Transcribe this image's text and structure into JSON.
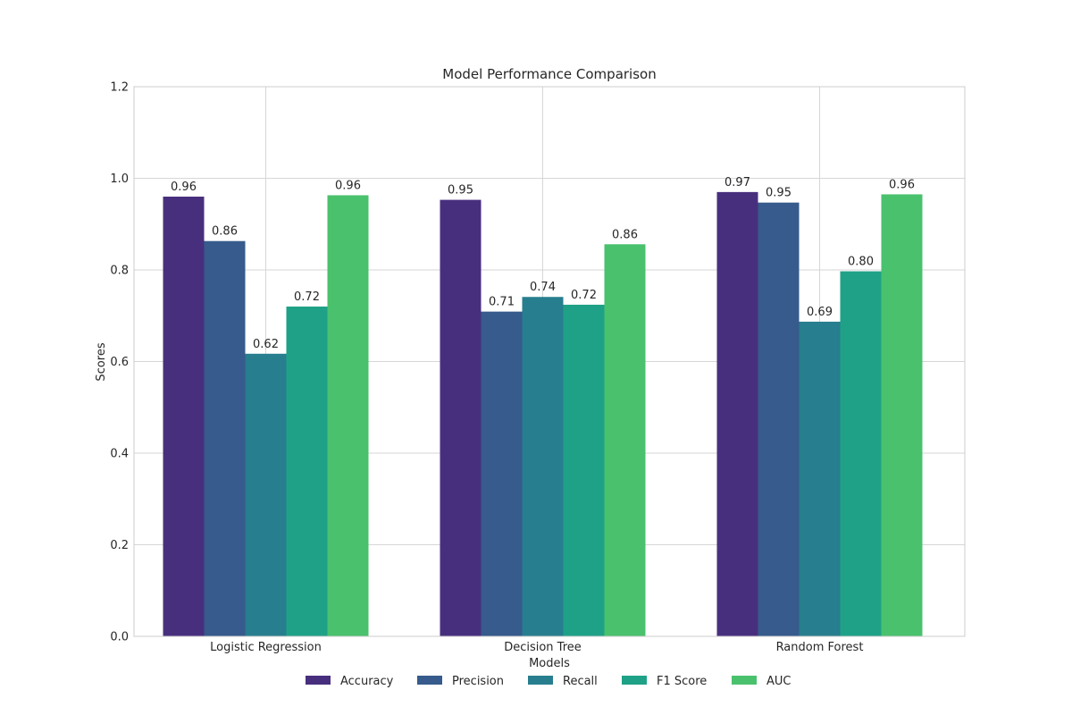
{
  "chart_data": {
    "type": "bar",
    "title": "Model Performance Comparison",
    "xlabel": "Models",
    "ylabel": "Scores",
    "ylim": [
      0,
      1.2
    ],
    "yticks": [
      "0.0",
      "0.2",
      "0.4",
      "0.6",
      "0.8",
      "1.0",
      "1.2"
    ],
    "grid": true,
    "legend_position": "bottom-center",
    "categories": [
      "Logistic Regression",
      "Decision Tree",
      "Random Forest"
    ],
    "series": [
      {
        "name": "Accuracy",
        "color": "#482f7e",
        "values": [
          0.96,
          0.953,
          0.97
        ],
        "labels": [
          "0.96",
          "0.95",
          "0.97"
        ]
      },
      {
        "name": "Precision",
        "color": "#365b8c",
        "values": [
          0.863,
          0.709,
          0.947
        ],
        "labels": [
          "0.86",
          "0.71",
          "0.95"
        ]
      },
      {
        "name": "Recall",
        "color": "#277e8e",
        "values": [
          0.617,
          0.741,
          0.687
        ],
        "labels": [
          "0.62",
          "0.74",
          "0.69"
        ]
      },
      {
        "name": "F1 Score",
        "color": "#1fa187",
        "values": [
          0.72,
          0.724,
          0.797
        ],
        "labels": [
          "0.72",
          "0.72",
          "0.80"
        ]
      },
      {
        "name": "AUC",
        "color": "#4ac16d",
        "values": [
          0.963,
          0.856,
          0.965
        ],
        "labels": [
          "0.96",
          "0.86",
          "0.96"
        ]
      }
    ]
  }
}
